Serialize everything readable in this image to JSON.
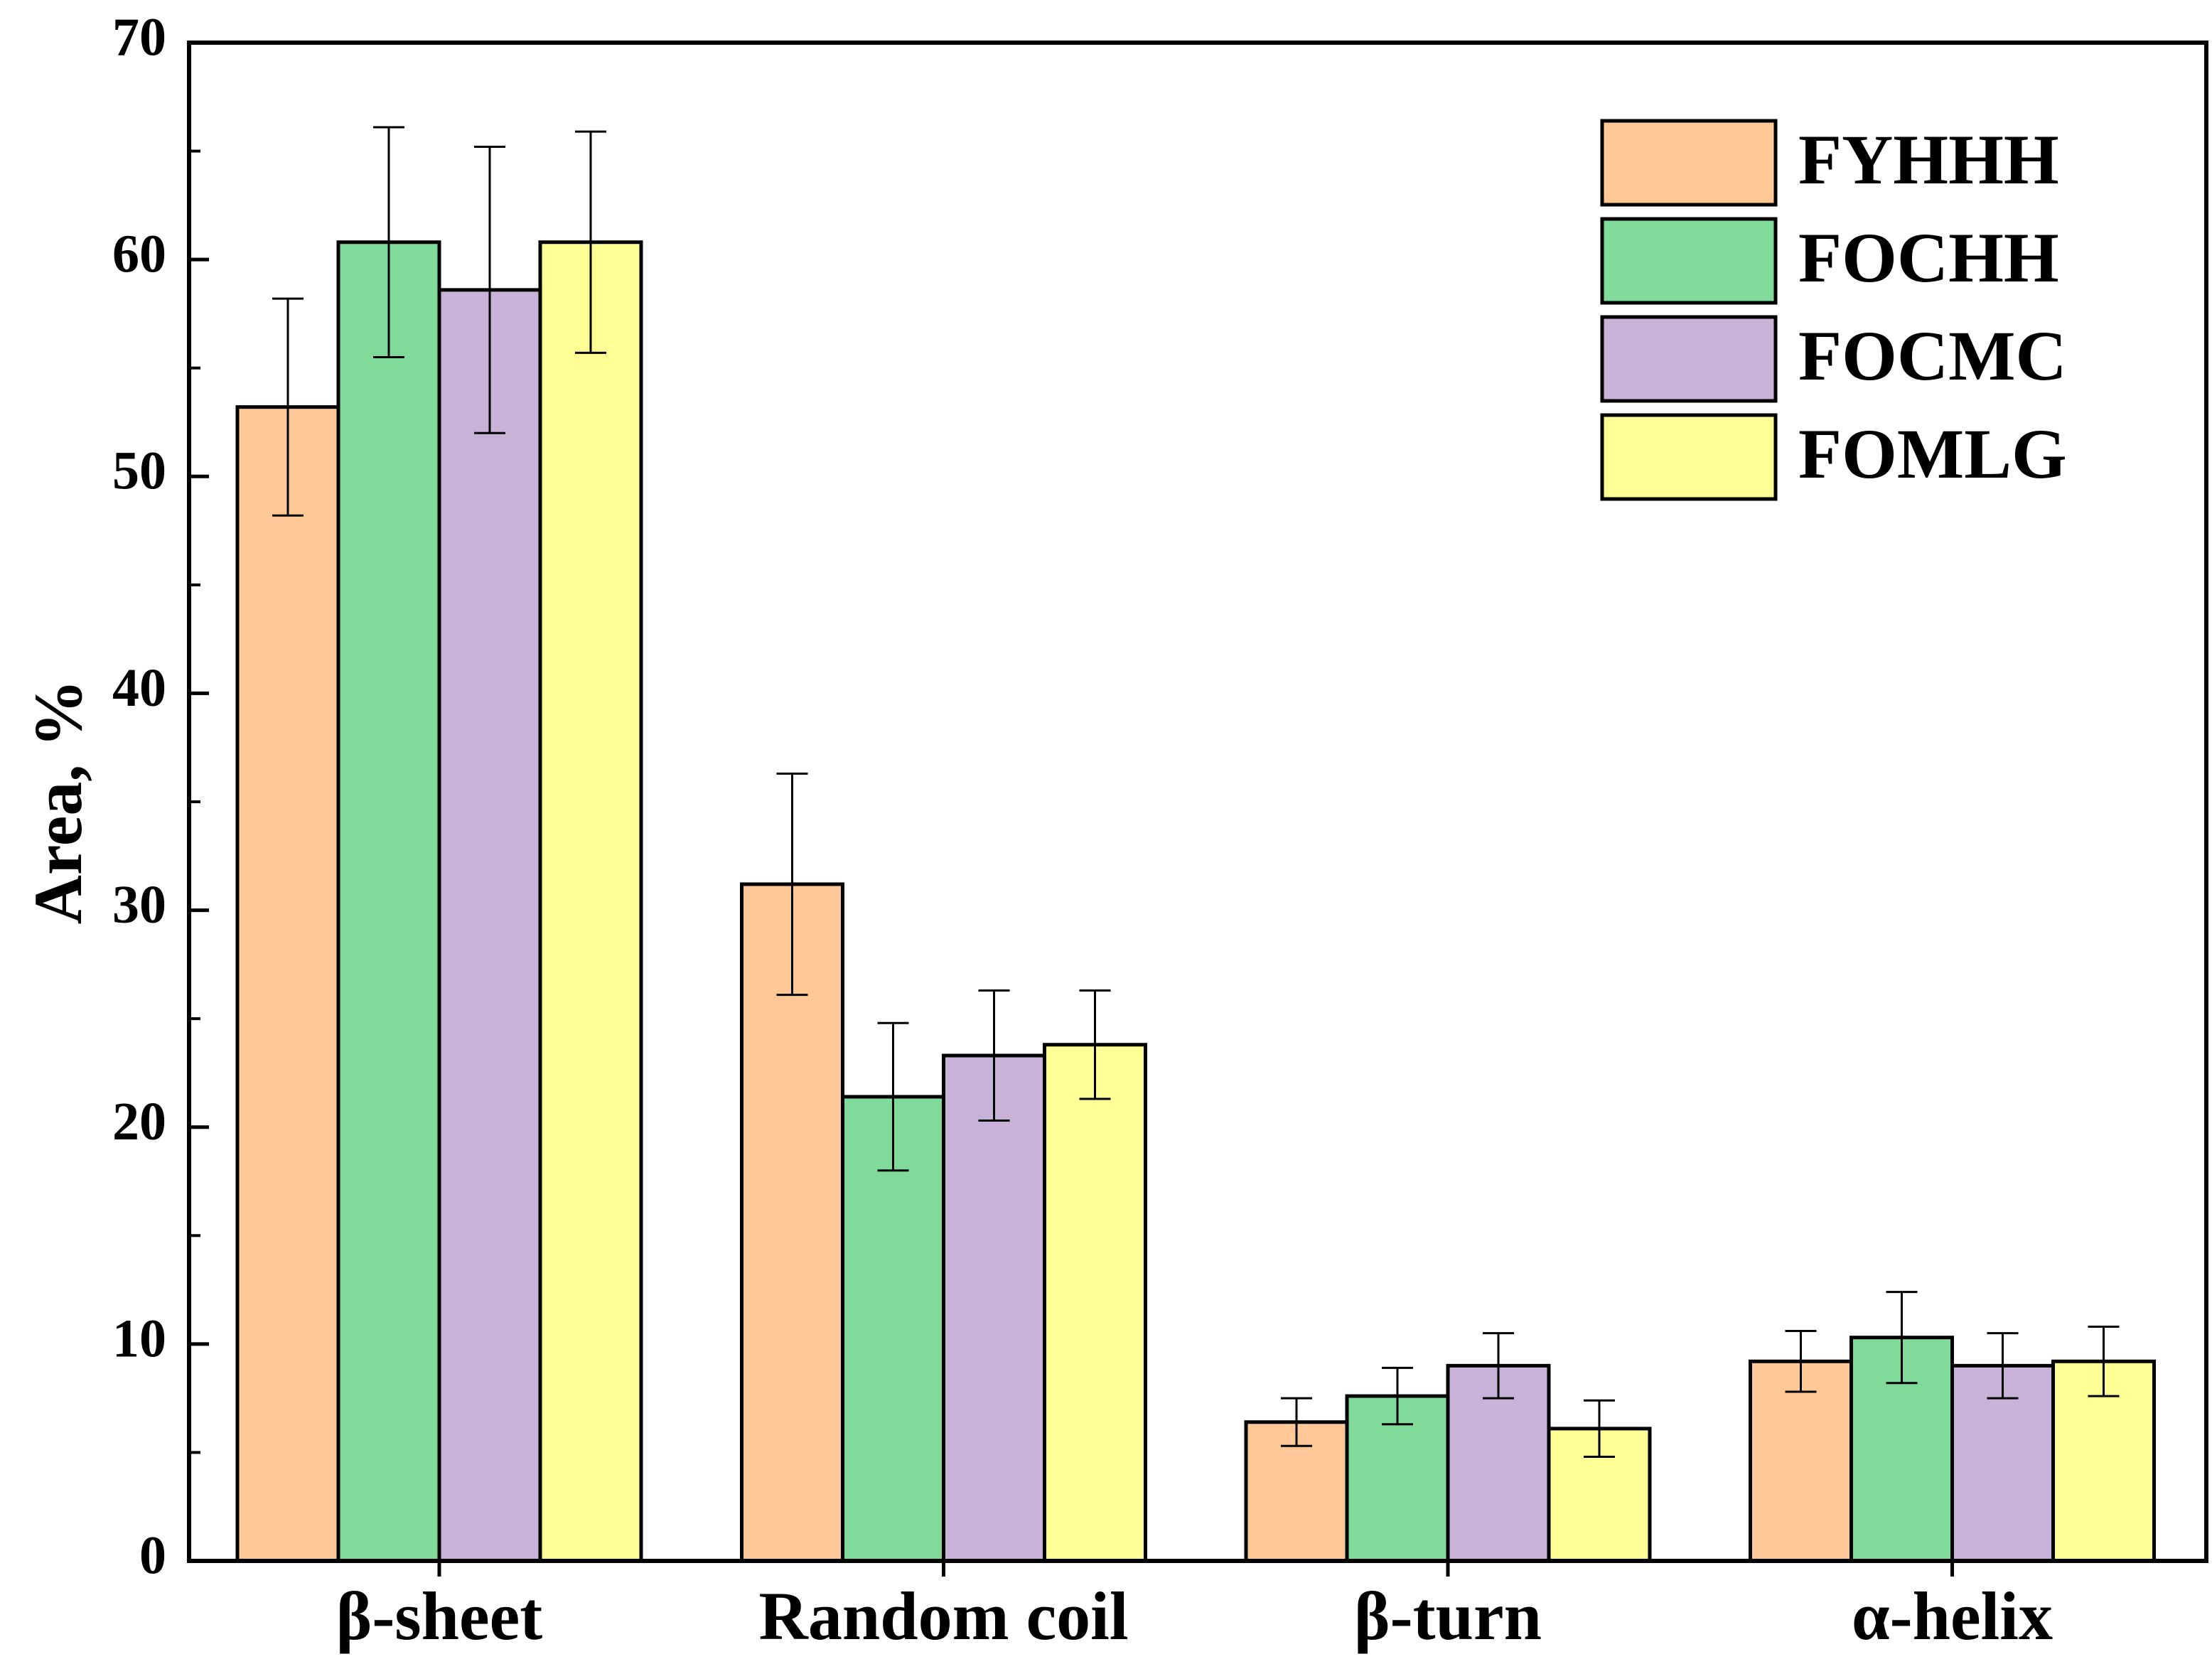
{
  "chart_data": {
    "type": "bar",
    "title": "",
    "xlabel": "",
    "ylabel": "Area, %",
    "ylim": [
      0,
      70
    ],
    "yticks": [
      0,
      10,
      20,
      30,
      40,
      50,
      60,
      70
    ],
    "grid": false,
    "legend_position": "top-right",
    "categories": [
      "β-sheet",
      "Random coil",
      "β-turn",
      "α-helix"
    ],
    "series": [
      {
        "name": "FYHHH",
        "color": "#FFC896",
        "values": [
          53.2,
          31.2,
          6.4,
          9.2
        ],
        "errors": [
          5.0,
          5.1,
          1.1,
          1.4
        ]
      },
      {
        "name": "FOCHH",
        "color": "#80DA9A",
        "values": [
          60.8,
          21.4,
          7.6,
          10.3
        ],
        "errors": [
          5.3,
          3.4,
          1.3,
          2.1
        ]
      },
      {
        "name": "FOCMC",
        "color": "#C8B2D8",
        "values": [
          58.6,
          23.3,
          9.0,
          9.0
        ],
        "errors": [
          6.6,
          3.0,
          1.5,
          1.5
        ]
      },
      {
        "name": "FOMLG",
        "color": "#FFFF96",
        "values": [
          60.8,
          23.8,
          6.1,
          9.2
        ],
        "errors": [
          5.1,
          2.5,
          1.3,
          1.6
        ]
      }
    ]
  }
}
